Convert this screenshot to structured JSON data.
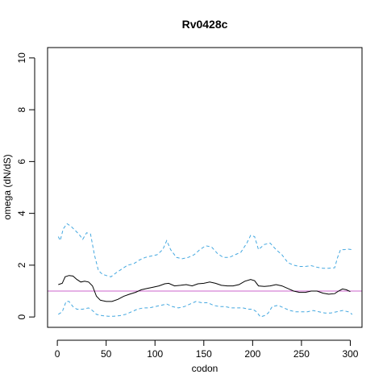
{
  "chart_data": {
    "type": "line",
    "title": "Rv0428c",
    "xlabel": "codon",
    "ylabel": "omega (dN/dS)",
    "xlim": [
      -10,
      312
    ],
    "ylim": [
      -0.4,
      10.4
    ],
    "xticks": [
      0,
      50,
      100,
      150,
      200,
      250,
      300
    ],
    "yticks": [
      0,
      2,
      4,
      6,
      8,
      10
    ],
    "grid": false,
    "legend": "none",
    "reference_line": {
      "y": 1,
      "color": "#cc66cc"
    },
    "series": [
      {
        "role": "estimate",
        "color": "#000000",
        "style": "solid",
        "points": [
          [
            1,
            1.25
          ],
          [
            5,
            1.3
          ],
          [
            8,
            1.55
          ],
          [
            12,
            1.6
          ],
          [
            16,
            1.58
          ],
          [
            20,
            1.45
          ],
          [
            24,
            1.35
          ],
          [
            28,
            1.38
          ],
          [
            32,
            1.35
          ],
          [
            36,
            1.2
          ],
          [
            40,
            0.8
          ],
          [
            44,
            0.65
          ],
          [
            50,
            0.6
          ],
          [
            56,
            0.6
          ],
          [
            62,
            0.68
          ],
          [
            68,
            0.8
          ],
          [
            74,
            0.88
          ],
          [
            80,
            0.95
          ],
          [
            86,
            1.05
          ],
          [
            92,
            1.1
          ],
          [
            98,
            1.15
          ],
          [
            104,
            1.2
          ],
          [
            110,
            1.28
          ],
          [
            114,
            1.3
          ],
          [
            120,
            1.2
          ],
          [
            126,
            1.22
          ],
          [
            132,
            1.25
          ],
          [
            138,
            1.2
          ],
          [
            144,
            1.28
          ],
          [
            150,
            1.3
          ],
          [
            156,
            1.35
          ],
          [
            162,
            1.3
          ],
          [
            168,
            1.22
          ],
          [
            174,
            1.2
          ],
          [
            180,
            1.2
          ],
          [
            186,
            1.25
          ],
          [
            192,
            1.38
          ],
          [
            198,
            1.45
          ],
          [
            202,
            1.4
          ],
          [
            206,
            1.2
          ],
          [
            212,
            1.18
          ],
          [
            218,
            1.2
          ],
          [
            224,
            1.25
          ],
          [
            230,
            1.2
          ],
          [
            236,
            1.1
          ],
          [
            242,
            1.0
          ],
          [
            248,
            0.95
          ],
          [
            254,
            0.95
          ],
          [
            260,
            1.0
          ],
          [
            266,
            1.0
          ],
          [
            272,
            0.92
          ],
          [
            278,
            0.88
          ],
          [
            284,
            0.9
          ],
          [
            288,
            1.0
          ],
          [
            292,
            1.08
          ],
          [
            296,
            1.05
          ],
          [
            300,
            0.98
          ]
        ]
      },
      {
        "role": "upper-bound",
        "color": "#44a8e0",
        "style": "dashed",
        "points": [
          [
            1,
            3.1
          ],
          [
            3,
            2.95
          ],
          [
            6,
            3.4
          ],
          [
            10,
            3.6
          ],
          [
            14,
            3.5
          ],
          [
            18,
            3.35
          ],
          [
            22,
            3.2
          ],
          [
            26,
            3.0
          ],
          [
            30,
            3.25
          ],
          [
            34,
            3.2
          ],
          [
            38,
            2.4
          ],
          [
            42,
            1.8
          ],
          [
            46,
            1.65
          ],
          [
            50,
            1.6
          ],
          [
            55,
            1.55
          ],
          [
            60,
            1.7
          ],
          [
            66,
            1.85
          ],
          [
            72,
            2.0
          ],
          [
            78,
            2.05
          ],
          [
            84,
            2.2
          ],
          [
            90,
            2.3
          ],
          [
            96,
            2.35
          ],
          [
            102,
            2.4
          ],
          [
            108,
            2.6
          ],
          [
            112,
            2.95
          ],
          [
            116,
            2.6
          ],
          [
            122,
            2.3
          ],
          [
            128,
            2.25
          ],
          [
            134,
            2.3
          ],
          [
            140,
            2.4
          ],
          [
            146,
            2.6
          ],
          [
            152,
            2.75
          ],
          [
            158,
            2.7
          ],
          [
            164,
            2.45
          ],
          [
            170,
            2.3
          ],
          [
            176,
            2.3
          ],
          [
            182,
            2.4
          ],
          [
            188,
            2.5
          ],
          [
            194,
            2.85
          ],
          [
            198,
            3.15
          ],
          [
            202,
            3.1
          ],
          [
            206,
            2.6
          ],
          [
            212,
            2.8
          ],
          [
            218,
            2.85
          ],
          [
            224,
            2.6
          ],
          [
            230,
            2.4
          ],
          [
            236,
            2.1
          ],
          [
            242,
            2.0
          ],
          [
            248,
            1.95
          ],
          [
            254,
            1.95
          ],
          [
            260,
            1.98
          ],
          [
            266,
            1.92
          ],
          [
            272,
            1.88
          ],
          [
            278,
            1.88
          ],
          [
            284,
            1.9
          ],
          [
            287,
            2.3
          ],
          [
            290,
            2.6
          ],
          [
            294,
            2.6
          ],
          [
            298,
            2.62
          ],
          [
            302,
            2.6
          ]
        ]
      },
      {
        "role": "lower-bound",
        "color": "#44a8e0",
        "style": "dashed",
        "points": [
          [
            1,
            0.1
          ],
          [
            5,
            0.2
          ],
          [
            9,
            0.6
          ],
          [
            12,
            0.6
          ],
          [
            16,
            0.4
          ],
          [
            20,
            0.3
          ],
          [
            26,
            0.3
          ],
          [
            32,
            0.35
          ],
          [
            36,
            0.25
          ],
          [
            40,
            0.1
          ],
          [
            46,
            0.05
          ],
          [
            52,
            0.03
          ],
          [
            58,
            0.03
          ],
          [
            64,
            0.05
          ],
          [
            70,
            0.1
          ],
          [
            76,
            0.2
          ],
          [
            82,
            0.3
          ],
          [
            88,
            0.35
          ],
          [
            94,
            0.35
          ],
          [
            100,
            0.4
          ],
          [
            106,
            0.45
          ],
          [
            112,
            0.5
          ],
          [
            118,
            0.4
          ],
          [
            124,
            0.35
          ],
          [
            130,
            0.4
          ],
          [
            136,
            0.5
          ],
          [
            142,
            0.6
          ],
          [
            148,
            0.55
          ],
          [
            154,
            0.55
          ],
          [
            160,
            0.45
          ],
          [
            166,
            0.4
          ],
          [
            172,
            0.4
          ],
          [
            178,
            0.35
          ],
          [
            184,
            0.35
          ],
          [
            190,
            0.35
          ],
          [
            196,
            0.3
          ],
          [
            200,
            0.3
          ],
          [
            204,
            0.2
          ],
          [
            208,
            0.0
          ],
          [
            212,
            0.05
          ],
          [
            216,
            0.15
          ],
          [
            220,
            0.4
          ],
          [
            226,
            0.45
          ],
          [
            232,
            0.35
          ],
          [
            238,
            0.25
          ],
          [
            244,
            0.2
          ],
          [
            250,
            0.2
          ],
          [
            256,
            0.2
          ],
          [
            262,
            0.25
          ],
          [
            268,
            0.2
          ],
          [
            274,
            0.15
          ],
          [
            280,
            0.15
          ],
          [
            286,
            0.2
          ],
          [
            292,
            0.25
          ],
          [
            298,
            0.2
          ],
          [
            302,
            0.1
          ]
        ]
      }
    ]
  }
}
